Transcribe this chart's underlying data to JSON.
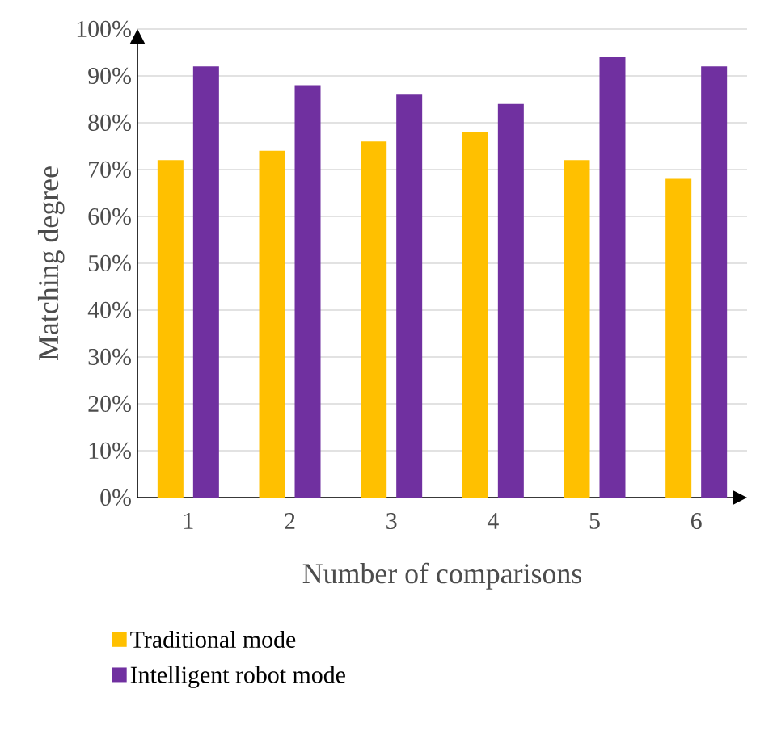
{
  "chart_data": {
    "type": "bar",
    "xlabel": "Number of comparisons",
    "ylabel": "Matching degree",
    "categories": [
      "1",
      "2",
      "3",
      "4",
      "5",
      "6"
    ],
    "series": [
      {
        "name": "Traditional mode",
        "color": "#ffc000",
        "values": [
          72,
          74,
          76,
          78,
          72,
          68
        ]
      },
      {
        "name": "Intelligent robot mode",
        "color": "#7030a0",
        "values": [
          92,
          88,
          86,
          84,
          94,
          92
        ]
      }
    ],
    "ylim": [
      0,
      100
    ],
    "yticks": [
      {
        "value": 0,
        "label": "0%"
      },
      {
        "value": 10,
        "label": "10%"
      },
      {
        "value": 20,
        "label": "20%"
      },
      {
        "value": 30,
        "label": "30%"
      },
      {
        "value": 40,
        "label": "40%"
      },
      {
        "value": 50,
        "label": "50%"
      },
      {
        "value": 60,
        "label": "60%"
      },
      {
        "value": 70,
        "label": "70%"
      },
      {
        "value": 80,
        "label": "80%"
      },
      {
        "value": 90,
        "label": "90%"
      },
      {
        "value": 100,
        "label": "100%"
      }
    ],
    "legend": "bottom",
    "grid": "y"
  }
}
